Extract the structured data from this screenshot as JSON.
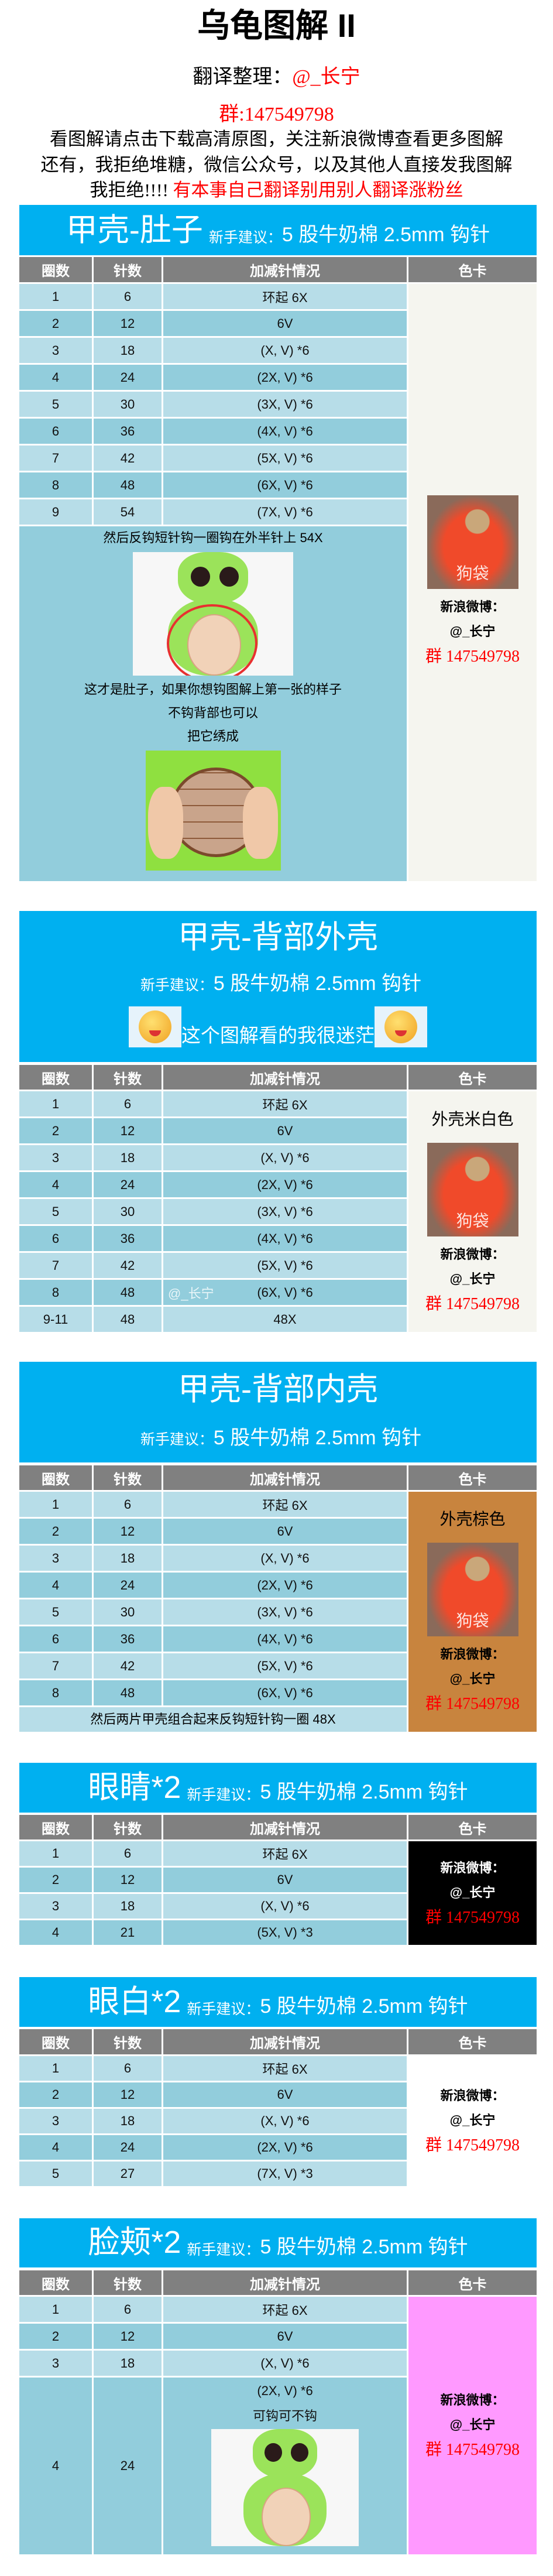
{
  "doc_title": "乌龟图解 II",
  "credit": {
    "label": "翻译整理：",
    "name": "@_长宁"
  },
  "group_top": "群:147549798",
  "intro": {
    "line1": "看图解请点击下载高清原图，关注新浪微博查看更多图解",
    "line2": "还有，我拒绝堆糖，微信公众号，以及其他人直接发我图解",
    "line3_black": "我拒绝!!!! ",
    "line3_red": "有本事自己翻译别用别人翻译涨粉丝"
  },
  "table_headers": [
    "圈数",
    "针数",
    "加减针情况",
    "色卡"
  ],
  "contact": {
    "weibo_label": "新浪微博：",
    "handle": "@_长宁",
    "group": "群 147549798"
  },
  "meme_caption": "狗袋",
  "colors": {
    "header_blue": "#00b0f0",
    "header_gray": "#808080",
    "row_light": "#b7dde8",
    "row_dark": "#92cddc"
  },
  "sections": [
    {
      "title": "甲壳-肚子",
      "advice_label": "新手建议：",
      "advice": "5 股牛奶棉 2.5mm 钩针",
      "rows": [
        {
          "r": "1",
          "s": "6",
          "i": "环起 6X"
        },
        {
          "r": "2",
          "s": "12",
          "i": "6V"
        },
        {
          "r": "3",
          "s": "18",
          "i": "(X, V) *6"
        },
        {
          "r": "4",
          "s": "24",
          "i": "(2X, V) *6"
        },
        {
          "r": "5",
          "s": "30",
          "i": "(3X, V) *6"
        },
        {
          "r": "6",
          "s": "36",
          "i": "(4X, V) *6"
        },
        {
          "r": "7",
          "s": "42",
          "i": "(5X, V) *6"
        },
        {
          "r": "8",
          "s": "48",
          "i": "(6X, V) *6"
        },
        {
          "r": "9",
          "s": "54",
          "i": "(7X, V) *6"
        }
      ],
      "note": [
        {
          "text": "然后反钩短针钩一圈钩在外半针上 54X"
        },
        {
          "image": "turtle-front-photo"
        },
        {
          "text": "这才是肚子，如果你想钩图解上第一张的样子"
        },
        {
          "text": "不钩背部也可以"
        },
        {
          "text": "把它绣成"
        },
        {
          "image": "turtle-belly-photo"
        }
      ],
      "color_card": {
        "bg": "#f5f5ef",
        "meme": true,
        "text_color": "#000000"
      }
    },
    {
      "title": "甲壳-背部外壳",
      "advice_label": "新手建议：",
      "advice": "5 股牛奶棉 2.5mm 钩针",
      "comment": "这个图解看的我很迷茫",
      "comment_icon": "crying-laughing-emoji-icon",
      "rows": [
        {
          "r": "1",
          "s": "6",
          "i": "环起 6X"
        },
        {
          "r": "2",
          "s": "12",
          "i": "6V"
        },
        {
          "r": "3",
          "s": "18",
          "i": "(X, V) *6"
        },
        {
          "r": "4",
          "s": "24",
          "i": "(2X, V) *6"
        },
        {
          "r": "5",
          "s": "30",
          "i": "(3X, V) *6"
        },
        {
          "r": "6",
          "s": "36",
          "i": "(4X, V) *6"
        },
        {
          "r": "7",
          "s": "42",
          "i": "(5X, V) *6"
        },
        {
          "r": "8",
          "s": "48",
          "i": "(6X, V) *6",
          "watermark": "@_长宁"
        },
        {
          "r": "9-11",
          "s": "48",
          "i": "48X"
        }
      ],
      "color_card": {
        "bg": "#f5f5ef",
        "label": "外壳米白色",
        "meme": true,
        "text_color": "#000000"
      }
    },
    {
      "title": "甲壳-背部内壳",
      "advice_label": "新手建议：",
      "advice": "5 股牛奶棉 2.5mm 钩针",
      "rows": [
        {
          "r": "1",
          "s": "6",
          "i": "环起 6X"
        },
        {
          "r": "2",
          "s": "12",
          "i": "6V"
        },
        {
          "r": "3",
          "s": "18",
          "i": "(X, V) *6"
        },
        {
          "r": "4",
          "s": "24",
          "i": "(2X, V) *6"
        },
        {
          "r": "5",
          "s": "30",
          "i": "(3X, V) *6"
        },
        {
          "r": "6",
          "s": "36",
          "i": "(4X, V) *6"
        },
        {
          "r": "7",
          "s": "42",
          "i": "(5X, V) *6"
        },
        {
          "r": "8",
          "s": "48",
          "i": "(6X, V) *6"
        }
      ],
      "note": [
        {
          "text": "然后两片甲壳组合起来反钩短针钩一圈 48X"
        }
      ],
      "color_card": {
        "bg": "#c8843e",
        "label": "外壳棕色",
        "meme": true,
        "text_color": "#000000"
      }
    },
    {
      "title": "眼睛*2",
      "advice_label": "新手建议：",
      "advice": "5 股牛奶棉 2.5mm 钩针",
      "rows": [
        {
          "r": "1",
          "s": "6",
          "i": "环起 6X"
        },
        {
          "r": "2",
          "s": "12",
          "i": "6V"
        },
        {
          "r": "3",
          "s": "18",
          "i": "(X, V) *6"
        },
        {
          "r": "4",
          "s": "21",
          "i": "(5X, V) *3"
        }
      ],
      "color_card": {
        "bg": "#000000",
        "meme": false,
        "text_color": "#ffffff"
      }
    },
    {
      "title": "眼白*2",
      "advice_label": "新手建议：",
      "advice": "5 股牛奶棉 2.5mm 钩针",
      "rows": [
        {
          "r": "1",
          "s": "6",
          "i": "环起 6X"
        },
        {
          "r": "2",
          "s": "12",
          "i": "6V"
        },
        {
          "r": "3",
          "s": "18",
          "i": "(X, V) *6"
        },
        {
          "r": "4",
          "s": "24",
          "i": "(2X, V) *6"
        },
        {
          "r": "5",
          "s": "27",
          "i": "(7X, V) *3"
        }
      ],
      "color_card": {
        "bg": "#ffffff",
        "meme": false,
        "text_color": "#000000"
      }
    },
    {
      "title": "脸颊*2",
      "advice_label": "新手建议：",
      "advice": "5 股牛奶棉 2.5mm 钩针",
      "rows": [
        {
          "r": "1",
          "s": "6",
          "i": "环起 6X"
        },
        {
          "r": "2",
          "s": "12",
          "i": "6V"
        },
        {
          "r": "3",
          "s": "18",
          "i": "(X, V) *6"
        },
        {
          "r": "4",
          "s": "24",
          "i": "(2X, V) *6",
          "extra": "可钩可不钩",
          "image": "turtle-front-photo"
        }
      ],
      "color_card": {
        "bg": "#ff99ff",
        "meme": false,
        "text_color": "#000000"
      }
    }
  ]
}
